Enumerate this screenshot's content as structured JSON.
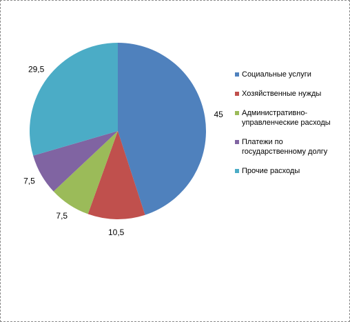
{
  "chart_data": {
    "type": "pie",
    "categories": [
      "Социальные услуги",
      "Хозяйственные нужды",
      "Административно-управленческие расходы",
      "Платежи по государственному долгу",
      "Прочие расходы"
    ],
    "values": [
      45,
      10.5,
      7.5,
      7.5,
      29.5
    ],
    "value_labels": [
      "45",
      "10,5",
      "7,5",
      "7,5",
      "29,5"
    ],
    "colors": [
      "#4f81bd",
      "#c0504d",
      "#9bbb59",
      "#8064a2",
      "#4bacc6"
    ]
  }
}
